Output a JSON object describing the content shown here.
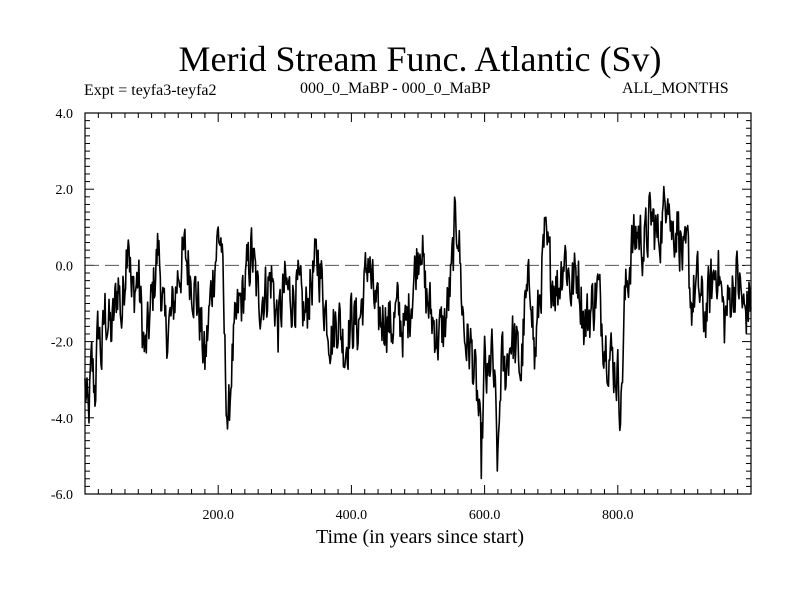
{
  "chart_data": {
    "type": "line",
    "title": "Merid Stream Func. Atlantic (Sv)",
    "subtitle_left": "Expt = teyfa3-teyfa2",
    "subtitle_center": "000_0_MaBP - 000_0_MaBP",
    "subtitle_right": "ALL_MONTHS",
    "xlabel": "Time (in years since start)",
    "ylabel": "",
    "xlim": [
      0,
      1000
    ],
    "ylim": [
      -6.0,
      4.0
    ],
    "x_ticks": [
      "200.0",
      "400.0",
      "600.0",
      "800.0"
    ],
    "x_tick_values": [
      200,
      400,
      600,
      800
    ],
    "y_ticks": [
      "4.0",
      "2.0",
      "0.0",
      "-2.0",
      "-4.0",
      "-6.0"
    ],
    "y_tick_values": [
      4,
      2,
      0,
      -2,
      -4,
      -6
    ],
    "reference_line": 0.0,
    "anchors": [
      [
        0,
        -3.2
      ],
      [
        5,
        -4.1
      ],
      [
        10,
        -2.6
      ],
      [
        15,
        -3.3
      ],
      [
        20,
        -1.6
      ],
      [
        25,
        -2.4
      ],
      [
        30,
        -1.2
      ],
      [
        40,
        -1.8
      ],
      [
        50,
        -0.4
      ],
      [
        55,
        -1.4
      ],
      [
        65,
        1.2
      ],
      [
        70,
        -0.9
      ],
      [
        80,
        -0.3
      ],
      [
        90,
        -2.4
      ],
      [
        100,
        -1.0
      ],
      [
        110,
        0.5
      ],
      [
        120,
        -1.8
      ],
      [
        130,
        -1.4
      ],
      [
        140,
        -0.2
      ],
      [
        150,
        0.3
      ],
      [
        160,
        -0.3
      ],
      [
        170,
        -1.0
      ],
      [
        180,
        -2.6
      ],
      [
        190,
        -0.6
      ],
      [
        200,
        0.8
      ],
      [
        205,
        0.6
      ],
      [
        210,
        -2.4
      ],
      [
        215,
        -4.4
      ],
      [
        220,
        -2.6
      ],
      [
        230,
        -1.2
      ],
      [
        240,
        -0.6
      ],
      [
        250,
        0.4
      ],
      [
        260,
        -0.9
      ],
      [
        270,
        -0.7
      ],
      [
        280,
        -0.3
      ],
      [
        290,
        -1.6
      ],
      [
        300,
        -0.6
      ],
      [
        310,
        -0.8
      ],
      [
        320,
        -0.7
      ],
      [
        330,
        -1.4
      ],
      [
        340,
        -0.4
      ],
      [
        350,
        0.2
      ],
      [
        360,
        -1.0
      ],
      [
        370,
        -1.9
      ],
      [
        380,
        -1.3
      ],
      [
        390,
        -2.2
      ],
      [
        400,
        -1.4
      ],
      [
        410,
        -1.6
      ],
      [
        420,
        -0.6
      ],
      [
        425,
        0.3
      ],
      [
        430,
        -0.5
      ],
      [
        440,
        -1.5
      ],
      [
        450,
        -1.3
      ],
      [
        460,
        -1.6
      ],
      [
        470,
        -1.2
      ],
      [
        480,
        -1.8
      ],
      [
        490,
        -0.8
      ],
      [
        500,
        0.4
      ],
      [
        505,
        0.9
      ],
      [
        510,
        -0.7
      ],
      [
        520,
        -1.3
      ],
      [
        530,
        -1.9
      ],
      [
        540,
        -1.6
      ],
      [
        550,
        -0.4
      ],
      [
        555,
        0.9
      ],
      [
        560,
        1.2
      ],
      [
        565,
        -0.6
      ],
      [
        570,
        -1.9
      ],
      [
        580,
        -2.2
      ],
      [
        590,
        -3.6
      ],
      [
        595,
        -5.2
      ],
      [
        600,
        -2.6
      ],
      [
        605,
        -3.3
      ],
      [
        610,
        -2.2
      ],
      [
        615,
        -3.3
      ],
      [
        620,
        -5.4
      ],
      [
        625,
        -2.4
      ],
      [
        630,
        -2.9
      ],
      [
        640,
        -1.8
      ],
      [
        650,
        -2.4
      ],
      [
        655,
        -2.8
      ],
      [
        660,
        -1.3
      ],
      [
        670,
        -0.3
      ],
      [
        675,
        -2.6
      ],
      [
        680,
        -1.4
      ],
      [
        690,
        0.6
      ],
      [
        700,
        -0.2
      ],
      [
        710,
        -0.6
      ],
      [
        720,
        0.4
      ],
      [
        730,
        -0.6
      ],
      [
        740,
        -0.1
      ],
      [
        750,
        -1.6
      ],
      [
        760,
        -1.1
      ],
      [
        770,
        -0.6
      ],
      [
        780,
        -1.9
      ],
      [
        790,
        -2.4
      ],
      [
        800,
        -2.9
      ],
      [
        805,
        -3.7
      ],
      [
        810,
        -1.1
      ],
      [
        820,
        0.4
      ],
      [
        830,
        0.9
      ],
      [
        840,
        0.5
      ],
      [
        850,
        1.3
      ],
      [
        860,
        0.7
      ],
      [
        870,
        1.4
      ],
      [
        875,
        2.5
      ],
      [
        880,
        0.9
      ],
      [
        890,
        1.1
      ],
      [
        900,
        -0.1
      ],
      [
        905,
        0.4
      ],
      [
        910,
        -1.0
      ],
      [
        920,
        -0.5
      ],
      [
        930,
        -1.4
      ],
      [
        940,
        -0.6
      ],
      [
        950,
        0.1
      ],
      [
        960,
        -1.5
      ],
      [
        970,
        -0.7
      ],
      [
        980,
        -0.3
      ],
      [
        990,
        -1.3
      ],
      [
        1000,
        -0.8
      ]
    ]
  }
}
